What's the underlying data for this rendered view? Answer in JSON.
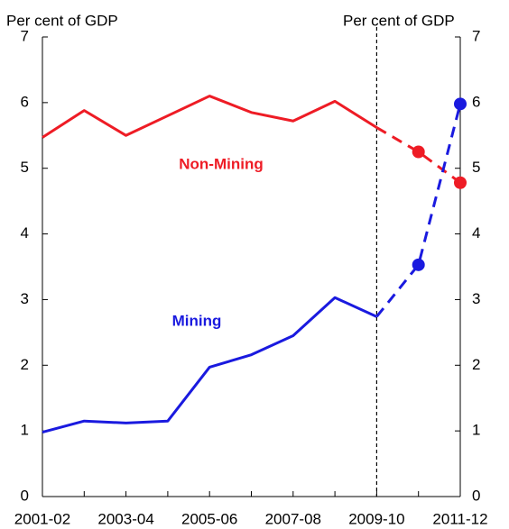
{
  "chart_data": {
    "type": "line",
    "y_label_left": "Per cent of GDP",
    "y_label_right": "Per cent of GDP",
    "categories": [
      "2001-02",
      null,
      "2003-04",
      null,
      "2005-06",
      null,
      "2007-08",
      null,
      "2009-10",
      null,
      "2011-12"
    ],
    "projection_start": 8,
    "series": [
      {
        "name": "Non-Mining",
        "color": "#ee1c25",
        "values": [
          5.47,
          5.88,
          5.5,
          5.8,
          6.1,
          5.85,
          5.72,
          6.02,
          5.62,
          5.25,
          4.78
        ]
      },
      {
        "name": "Mining",
        "color": "#1a1adf",
        "values": [
          0.98,
          1.15,
          1.12,
          1.15,
          1.97,
          2.16,
          2.45,
          3.03,
          2.74,
          3.53,
          5.98
        ]
      }
    ],
    "ylim": [
      0,
      7
    ],
    "yticks": [
      0,
      1,
      2,
      3,
      4,
      5,
      6,
      7
    ]
  }
}
